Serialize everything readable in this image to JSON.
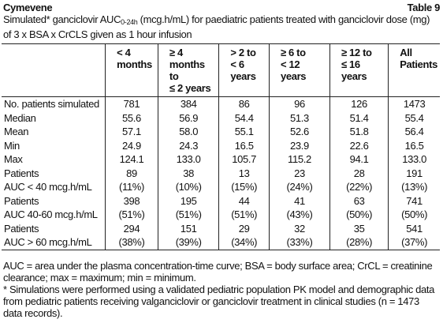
{
  "header": {
    "title": "Cymevene",
    "table_number": "Table 9"
  },
  "caption": {
    "before": "Simulated* ganciclovir AUC",
    "subscript": "0-24h",
    "after": " (mcg.h/mL) for paediatric patients treated with ganciclovir dose (mg) of 3 x BSA x CrCLS given as 1 hour infusion"
  },
  "table": {
    "header": [
      [
        "< 4",
        "months"
      ],
      [
        "≥ 4",
        "months to",
        "≤ 2 years"
      ],
      [
        "> 2 to",
        "< 6 years"
      ],
      [
        "≥ 6 to",
        "< 12 years"
      ],
      [
        "≥ 12 to",
        "≤ 16 years"
      ],
      [
        "All",
        "Patients"
      ]
    ],
    "rows": [
      [
        "No. patients simulated",
        "781",
        "384",
        "86",
        "96",
        "126",
        "1473"
      ],
      [
        "Median",
        "55.6",
        "56.9",
        "54.4",
        "51.3",
        "51.4",
        "55.4"
      ],
      [
        "Mean",
        "57.1",
        "58.0",
        "55.1",
        "52.6",
        "51.8",
        "56.4"
      ],
      [
        "Min",
        "24.9",
        "24.3",
        "16.5",
        "23.9",
        "22.6",
        "16.5"
      ],
      [
        "Max",
        "124.1",
        "133.0",
        "105.7",
        "115.2",
        "94.1",
        "133.0"
      ],
      [
        "Patients",
        "89",
        "38",
        "13",
        "23",
        "28",
        "191"
      ],
      [
        "AUC < 40 mcg.h/mL",
        "(11%)",
        "(10%)",
        "(15%)",
        "(24%)",
        "(22%)",
        "(13%)"
      ],
      [
        "Patients",
        "398",
        "195",
        "44",
        "41",
        "63",
        "741"
      ],
      [
        "AUC 40-60 mcg.h/mL",
        "(51%)",
        "(51%)",
        "(51%)",
        "(43%)",
        "(50%)",
        "(50%)"
      ],
      [
        "Patients",
        "294",
        "151",
        "29",
        "32",
        "35",
        "541"
      ],
      [
        "AUC > 60 mcg.h/mL",
        "(38%)",
        "(39%)",
        "(34%)",
        "(33%)",
        "(28%)",
        "(37%)"
      ]
    ]
  },
  "footnotes": [
    "AUC = area under the plasma concentration-time curve; BSA = body surface area; CrCL = creatinine clearance; max = maximum; min = minimum.",
    "* Simulations were performed using a validated pediatric population PK model and demographic data from pediatric patients receiving valganciclovir or ganciclovir treatment in clinical studies (n = 1473 data records)."
  ]
}
